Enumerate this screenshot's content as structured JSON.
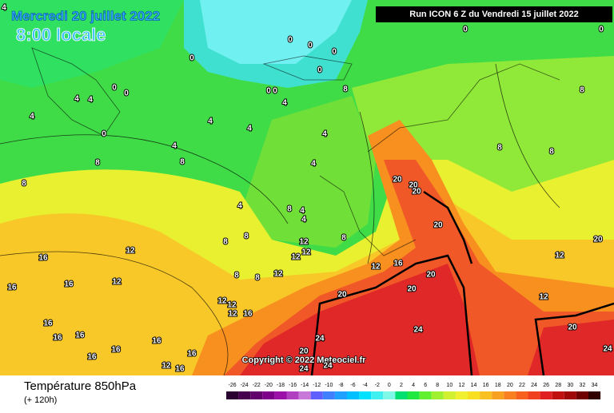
{
  "header": {
    "date": "Mercredi 20 juillet 2022",
    "time": "8:00 locale",
    "run": "Run ICON 6 Z du Vendredi 15 juillet 2022"
  },
  "copyright": "Copyright © 2022 Meteociel.fr",
  "footer": {
    "title": "Température 850hPa",
    "lead": "(+ 120h)"
  },
  "colorbar": {
    "values": [
      -26,
      -24,
      -22,
      -20,
      -18,
      -16,
      -14,
      -12,
      -10,
      -8,
      -6,
      -4,
      -2,
      0,
      2,
      4,
      6,
      8,
      10,
      12,
      14,
      16,
      18,
      20,
      22,
      24,
      26,
      28,
      30,
      32,
      34
    ],
    "colors": [
      "#2a0030",
      "#46004e",
      "#62006c",
      "#7e008a",
      "#9a10a8",
      "#b040c0",
      "#c878d8",
      "#6060ff",
      "#4080ff",
      "#20a0ff",
      "#00c0ff",
      "#00e0ff",
      "#40f0f0",
      "#80f8e8",
      "#00e070",
      "#20e840",
      "#60f030",
      "#a0f030",
      "#d0f030",
      "#f0f030",
      "#f8e020",
      "#f8c020",
      "#f8a020",
      "#f88020",
      "#f86020",
      "#f04020",
      "#e02020",
      "#c01010",
      "#a00808",
      "#700000",
      "#300000"
    ]
  },
  "contour_labels": [
    0,
    0,
    0,
    0,
    0,
    0,
    0,
    0,
    0,
    0,
    0,
    0,
    4,
    4,
    4,
    4,
    4,
    4,
    4,
    4,
    4,
    4,
    4,
    4,
    4,
    8,
    8,
    8,
    8,
    8,
    8,
    8,
    8,
    8,
    8,
    8,
    8,
    8,
    12,
    12,
    12,
    12,
    12,
    12,
    12,
    12,
    12,
    12,
    12,
    12,
    12,
    16,
    16,
    16,
    16,
    16,
    16,
    16,
    16,
    16,
    16,
    16,
    16,
    16,
    20,
    20,
    20,
    20,
    20,
    20,
    20,
    20,
    20,
    20,
    24,
    24,
    24,
    24,
    24
  ]
}
